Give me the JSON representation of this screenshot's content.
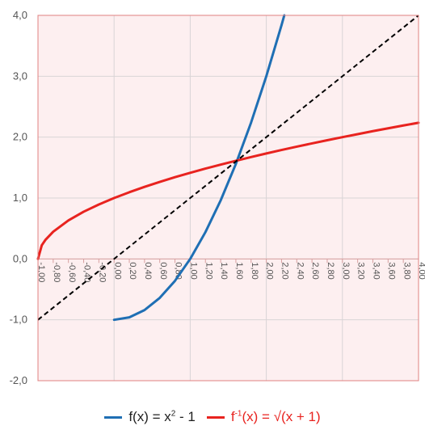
{
  "chart_data": {
    "type": "line",
    "xlim": [
      -1.0,
      4.0
    ],
    "ylim": [
      -2.0,
      4.0
    ],
    "x_ticks": [
      "-1,00",
      "-0,80",
      "-0,60",
      "-0,40",
      "-0,20",
      "0,00",
      "0,20",
      "0,40",
      "0,60",
      "0,80",
      "1,00",
      "1,20",
      "1,40",
      "1,60",
      "1,80",
      "2,00",
      "2,20",
      "2,40",
      "2,60",
      "2,80",
      "3,00",
      "3,20",
      "3,40",
      "3,60",
      "3,80",
      "4,00"
    ],
    "y_ticks": [
      "-2,0",
      "-1,0",
      "0,0",
      "1,0",
      "2,0",
      "3,0",
      "4,0"
    ],
    "grid": true,
    "plot_background": "#fdeff0",
    "frame_color": "#e08080",
    "legend_position": "bottom",
    "series": [
      {
        "name_parts": [
          "f(x) = x",
          "2",
          " - 1"
        ],
        "color": "#1f6fb4",
        "style": "solid",
        "x": [
          0.0,
          0.2,
          0.4,
          0.6,
          0.8,
          1.0,
          1.2,
          1.4,
          1.6,
          1.8,
          2.0,
          2.2,
          2.236
        ],
        "y": [
          -1.0,
          -0.96,
          -0.84,
          -0.64,
          -0.36,
          0.0,
          0.44,
          0.96,
          1.56,
          2.24,
          3.0,
          3.84,
          4.0
        ]
      },
      {
        "name_parts": [
          "f",
          "-1",
          "(x) = √(x + 1)"
        ],
        "color": "#e8231f",
        "style": "solid",
        "x": [
          -1.0,
          -0.95,
          -0.9,
          -0.8,
          -0.6,
          -0.4,
          -0.2,
          0.0,
          0.2,
          0.4,
          0.6,
          0.8,
          1.0,
          1.2,
          1.4,
          1.6,
          1.8,
          2.0,
          2.2,
          2.4,
          2.6,
          2.8,
          3.0,
          3.2,
          3.4,
          3.6,
          3.8,
          4.0
        ],
        "y": [
          0.0,
          0.224,
          0.316,
          0.447,
          0.632,
          0.775,
          0.894,
          1.0,
          1.095,
          1.183,
          1.265,
          1.342,
          1.414,
          1.483,
          1.549,
          1.612,
          1.673,
          1.732,
          1.789,
          1.844,
          1.897,
          1.949,
          2.0,
          2.049,
          2.098,
          2.145,
          2.191,
          2.236
        ]
      },
      {
        "color": "#000000",
        "style": "dashed",
        "x": [
          -1.0,
          4.0
        ],
        "y": [
          -1.0,
          4.0
        ]
      }
    ]
  }
}
